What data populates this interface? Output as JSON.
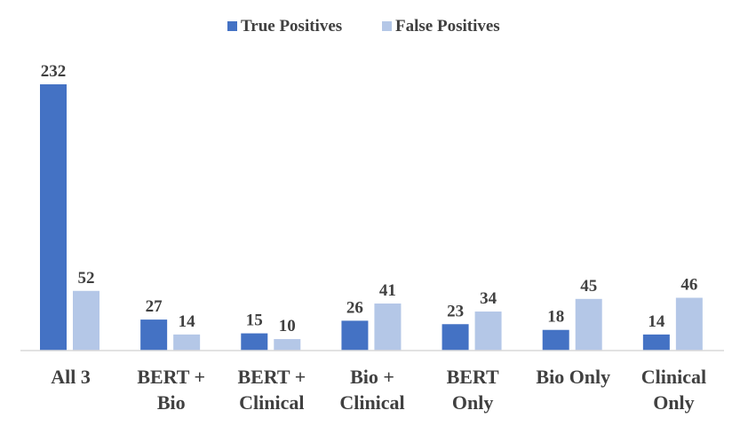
{
  "chart_data": {
    "type": "bar",
    "title": "",
    "xlabel": "",
    "ylabel": "",
    "categories": [
      [
        "All 3"
      ],
      [
        "BERT +",
        "Bio"
      ],
      [
        "BERT +",
        "Clinical"
      ],
      [
        "Bio +",
        "Clinical"
      ],
      [
        "BERT",
        "Only"
      ],
      [
        "Bio Only"
      ],
      [
        "Clinical",
        "Only"
      ]
    ],
    "series": [
      {
        "name": "True Positives",
        "color": "#4472C4",
        "values": [
          232,
          27,
          15,
          26,
          23,
          18,
          14
        ]
      },
      {
        "name": "False Positives",
        "color": "#B4C7E7",
        "values": [
          52,
          14,
          10,
          41,
          34,
          45,
          46
        ]
      }
    ],
    "ylim": [
      0,
      232
    ],
    "grid": false,
    "legend_position": "top-center",
    "data_labels": true
  }
}
